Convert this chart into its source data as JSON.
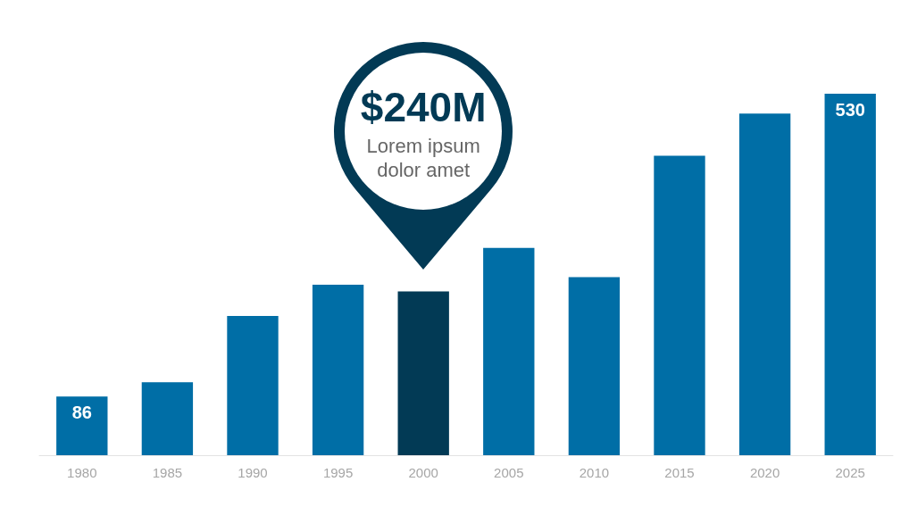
{
  "chart_data": {
    "type": "bar",
    "categories": [
      "1980",
      "1985",
      "1990",
      "1995",
      "2000",
      "2005",
      "2010",
      "2015",
      "2020",
      "2025"
    ],
    "values": [
      86,
      107,
      204,
      250,
      240,
      304,
      261,
      439,
      501,
      530
    ],
    "colors": [
      "#006ea6",
      "#006ea6",
      "#006ea6",
      "#006ea6",
      "#023a55",
      "#006ea6",
      "#006ea6",
      "#006ea6",
      "#006ea6",
      "#006ea6"
    ],
    "value_labels": [
      "86",
      null,
      null,
      null,
      null,
      null,
      null,
      null,
      null,
      "530"
    ],
    "annotations": [
      "$240M",
      "Lorem ipsum dolor amet"
    ]
  }
}
